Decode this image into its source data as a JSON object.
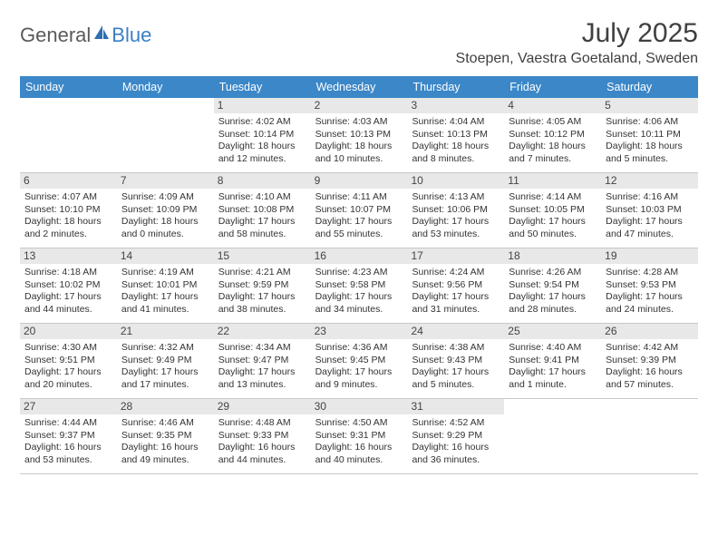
{
  "brand": {
    "general": "General",
    "blue": "Blue"
  },
  "title": "July 2025",
  "location": "Stoepen, Vaestra Goetaland, Sweden",
  "colors": {
    "header_bg": "#3b87c8",
    "header_fg": "#ffffff",
    "daynum_bg": "#e8e8e8",
    "border": "#c8c8c8",
    "text": "#333333"
  },
  "day_headers": [
    "Sunday",
    "Monday",
    "Tuesday",
    "Wednesday",
    "Thursday",
    "Friday",
    "Saturday"
  ],
  "weeks": [
    [
      null,
      null,
      {
        "n": "1",
        "sunrise": "4:02 AM",
        "sunset": "10:14 PM",
        "daylight": "18 hours and 12 minutes."
      },
      {
        "n": "2",
        "sunrise": "4:03 AM",
        "sunset": "10:13 PM",
        "daylight": "18 hours and 10 minutes."
      },
      {
        "n": "3",
        "sunrise": "4:04 AM",
        "sunset": "10:13 PM",
        "daylight": "18 hours and 8 minutes."
      },
      {
        "n": "4",
        "sunrise": "4:05 AM",
        "sunset": "10:12 PM",
        "daylight": "18 hours and 7 minutes."
      },
      {
        "n": "5",
        "sunrise": "4:06 AM",
        "sunset": "10:11 PM",
        "daylight": "18 hours and 5 minutes."
      }
    ],
    [
      {
        "n": "6",
        "sunrise": "4:07 AM",
        "sunset": "10:10 PM",
        "daylight": "18 hours and 2 minutes."
      },
      {
        "n": "7",
        "sunrise": "4:09 AM",
        "sunset": "10:09 PM",
        "daylight": "18 hours and 0 minutes."
      },
      {
        "n": "8",
        "sunrise": "4:10 AM",
        "sunset": "10:08 PM",
        "daylight": "17 hours and 58 minutes."
      },
      {
        "n": "9",
        "sunrise": "4:11 AM",
        "sunset": "10:07 PM",
        "daylight": "17 hours and 55 minutes."
      },
      {
        "n": "10",
        "sunrise": "4:13 AM",
        "sunset": "10:06 PM",
        "daylight": "17 hours and 53 minutes."
      },
      {
        "n": "11",
        "sunrise": "4:14 AM",
        "sunset": "10:05 PM",
        "daylight": "17 hours and 50 minutes."
      },
      {
        "n": "12",
        "sunrise": "4:16 AM",
        "sunset": "10:03 PM",
        "daylight": "17 hours and 47 minutes."
      }
    ],
    [
      {
        "n": "13",
        "sunrise": "4:18 AM",
        "sunset": "10:02 PM",
        "daylight": "17 hours and 44 minutes."
      },
      {
        "n": "14",
        "sunrise": "4:19 AM",
        "sunset": "10:01 PM",
        "daylight": "17 hours and 41 minutes."
      },
      {
        "n": "15",
        "sunrise": "4:21 AM",
        "sunset": "9:59 PM",
        "daylight": "17 hours and 38 minutes."
      },
      {
        "n": "16",
        "sunrise": "4:23 AM",
        "sunset": "9:58 PM",
        "daylight": "17 hours and 34 minutes."
      },
      {
        "n": "17",
        "sunrise": "4:24 AM",
        "sunset": "9:56 PM",
        "daylight": "17 hours and 31 minutes."
      },
      {
        "n": "18",
        "sunrise": "4:26 AM",
        "sunset": "9:54 PM",
        "daylight": "17 hours and 28 minutes."
      },
      {
        "n": "19",
        "sunrise": "4:28 AM",
        "sunset": "9:53 PM",
        "daylight": "17 hours and 24 minutes."
      }
    ],
    [
      {
        "n": "20",
        "sunrise": "4:30 AM",
        "sunset": "9:51 PM",
        "daylight": "17 hours and 20 minutes."
      },
      {
        "n": "21",
        "sunrise": "4:32 AM",
        "sunset": "9:49 PM",
        "daylight": "17 hours and 17 minutes."
      },
      {
        "n": "22",
        "sunrise": "4:34 AM",
        "sunset": "9:47 PM",
        "daylight": "17 hours and 13 minutes."
      },
      {
        "n": "23",
        "sunrise": "4:36 AM",
        "sunset": "9:45 PM",
        "daylight": "17 hours and 9 minutes."
      },
      {
        "n": "24",
        "sunrise": "4:38 AM",
        "sunset": "9:43 PM",
        "daylight": "17 hours and 5 minutes."
      },
      {
        "n": "25",
        "sunrise": "4:40 AM",
        "sunset": "9:41 PM",
        "daylight": "17 hours and 1 minute."
      },
      {
        "n": "26",
        "sunrise": "4:42 AM",
        "sunset": "9:39 PM",
        "daylight": "16 hours and 57 minutes."
      }
    ],
    [
      {
        "n": "27",
        "sunrise": "4:44 AM",
        "sunset": "9:37 PM",
        "daylight": "16 hours and 53 minutes."
      },
      {
        "n": "28",
        "sunrise": "4:46 AM",
        "sunset": "9:35 PM",
        "daylight": "16 hours and 49 minutes."
      },
      {
        "n": "29",
        "sunrise": "4:48 AM",
        "sunset": "9:33 PM",
        "daylight": "16 hours and 44 minutes."
      },
      {
        "n": "30",
        "sunrise": "4:50 AM",
        "sunset": "9:31 PM",
        "daylight": "16 hours and 40 minutes."
      },
      {
        "n": "31",
        "sunrise": "4:52 AM",
        "sunset": "9:29 PM",
        "daylight": "16 hours and 36 minutes."
      },
      null,
      null
    ]
  ],
  "labels": {
    "sunrise": "Sunrise: ",
    "sunset": "Sunset: ",
    "daylight": "Daylight: "
  }
}
